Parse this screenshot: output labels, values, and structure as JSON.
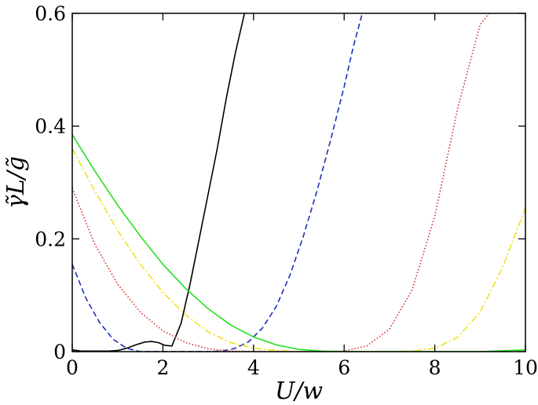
{
  "chart_data": {
    "type": "line",
    "title": "",
    "xlabel": "U/w",
    "ylabel": "γ̃L/g̃",
    "xlim": [
      0,
      10
    ],
    "ylim": [
      0,
      0.6
    ],
    "x_ticks": [
      0,
      2,
      4,
      6,
      8,
      10
    ],
    "y_ticks": [
      0,
      0.2,
      0.4,
      0.6
    ],
    "x_tick_labels": [
      "0",
      "2",
      "4",
      "6",
      "8",
      "10"
    ],
    "y_tick_labels": [
      "0",
      "0.2",
      "0.4",
      "0.6"
    ],
    "grid": false,
    "legend": "none",
    "series": [
      {
        "color": "#000000",
        "dash": "solid",
        "x": [
          0,
          0.2,
          0.5,
          0.8,
          1.0,
          1.2,
          1.4,
          1.6,
          1.75,
          1.9,
          2.05,
          2.2,
          2.4,
          2.6,
          2.8,
          3.0,
          3.2,
          3.4,
          3.6,
          3.8
        ],
        "y": [
          0.003,
          0.001,
          0.001,
          0.001,
          0.002,
          0.006,
          0.012,
          0.017,
          0.018,
          0.016,
          0.011,
          0.01,
          0.05,
          0.12,
          0.2,
          0.28,
          0.36,
          0.45,
          0.53,
          0.6
        ]
      },
      {
        "color": "#1a2fb8",
        "dash": "dashed",
        "x": [
          0,
          0.3,
          0.6,
          0.9,
          1.2,
          1.5,
          1.8,
          2.1,
          2.4,
          2.7,
          3.0,
          3.3,
          3.6,
          3.9,
          4.2,
          4.5,
          4.8,
          5.1,
          5.4,
          5.7,
          6.0,
          6.2,
          6.4
        ],
        "y": [
          0.155,
          0.095,
          0.052,
          0.022,
          0.006,
          0.0,
          0.0,
          0.0,
          0.0,
          0.0,
          0.0,
          0.001,
          0.006,
          0.018,
          0.042,
          0.08,
          0.135,
          0.205,
          0.285,
          0.375,
          0.47,
          0.54,
          0.6
        ]
      },
      {
        "color": "#d42a2a",
        "dash": "dotted",
        "x": [
          0,
          0.5,
          1.0,
          1.5,
          2.0,
          2.5,
          3.0,
          3.5,
          4.0,
          4.5,
          5.0,
          5.5,
          6.0,
          6.5,
          7.0,
          7.5,
          8.0,
          8.5,
          9.0,
          9.2
        ],
        "y": [
          0.29,
          0.19,
          0.12,
          0.07,
          0.037,
          0.016,
          0.005,
          0.001,
          0.0,
          0.0,
          0.0,
          0.0,
          0.001,
          0.01,
          0.04,
          0.11,
          0.24,
          0.43,
          0.58,
          0.6
        ]
      },
      {
        "color": "#f0e020",
        "dash": "dash-dot",
        "x": [
          0,
          0.5,
          1.0,
          1.5,
          2.0,
          2.5,
          3.0,
          3.5,
          4.0,
          4.5,
          5.0,
          5.5,
          6.0,
          6.5,
          7.0,
          7.5,
          8.0,
          8.5,
          9.0,
          9.5,
          10.0
        ],
        "y": [
          0.36,
          0.285,
          0.215,
          0.155,
          0.105,
          0.065,
          0.035,
          0.016,
          0.006,
          0.002,
          0.0,
          0.0,
          0.0,
          0.0,
          0.0,
          0.001,
          0.006,
          0.025,
          0.07,
          0.15,
          0.255
        ]
      },
      {
        "color": "#22e022",
        "dash": "solid",
        "x": [
          0,
          0.5,
          1.0,
          1.5,
          2.0,
          2.5,
          3.0,
          3.5,
          4.0,
          4.5,
          5.0,
          5.5,
          6.0,
          6.5,
          7.0,
          8.0,
          9.0,
          10.0
        ],
        "y": [
          0.385,
          0.32,
          0.26,
          0.205,
          0.155,
          0.112,
          0.076,
          0.047,
          0.026,
          0.012,
          0.004,
          0.001,
          0.0,
          0.0,
          0.0,
          0.0,
          0.0,
          0.003
        ]
      }
    ]
  }
}
